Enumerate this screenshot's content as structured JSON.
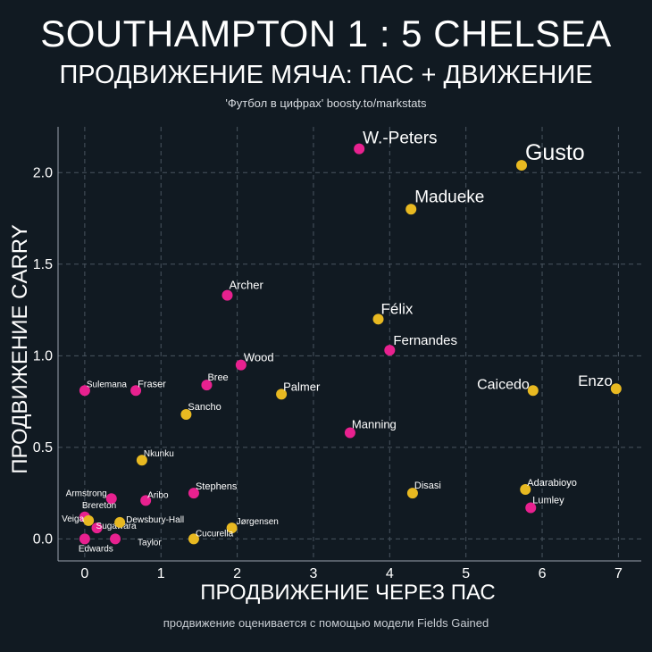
{
  "header": {
    "title": "SOUTHAMPTON 1 : 5 CHELSEA",
    "subtitle": "ПРОДВИЖЕНИЕ МЯЧА: ПАС + ДВИЖЕНИЕ",
    "source": "'Футбол в цифрах' boosty.to/markstats"
  },
  "footer": {
    "note": "продвижение оценивается с помощью модели Fields Gained"
  },
  "colors": {
    "background": "#111a22",
    "southampton": "#e8218f",
    "chelsea": "#e8b921",
    "grid": "#4a5560"
  },
  "chart_data": {
    "type": "scatter",
    "xlabel": "ПРОДВИЖЕНИЕ ЧЕРЕЗ ПАС",
    "ylabel": "ПРОДВИЖЕНИЕ CARRY",
    "xlim": [
      -0.35,
      7.3
    ],
    "ylim": [
      -0.12,
      2.25
    ],
    "xticks": [
      "0",
      "1",
      "2",
      "3",
      "4",
      "5",
      "6",
      "7"
    ],
    "yticks": [
      "0.0",
      "0.5",
      "1.0",
      "1.5",
      "2.0"
    ],
    "grid": true,
    "series": [
      {
        "name": "Southampton",
        "color": "#e8218f",
        "points": [
          {
            "label": "W.-Peters",
            "x": 3.6,
            "y": 2.13
          },
          {
            "label": "Archer",
            "x": 1.87,
            "y": 1.33
          },
          {
            "label": "Fernandes",
            "x": 4.0,
            "y": 1.03
          },
          {
            "label": "Wood",
            "x": 2.05,
            "y": 0.95
          },
          {
            "label": "Bree",
            "x": 1.6,
            "y": 0.84
          },
          {
            "label": "Sulemana",
            "x": 0.0,
            "y": 0.81
          },
          {
            "label": "Fraser",
            "x": 0.67,
            "y": 0.81
          },
          {
            "label": "Manning",
            "x": 3.48,
            "y": 0.58
          },
          {
            "label": "Stephens",
            "x": 1.43,
            "y": 0.25
          },
          {
            "label": "Aribo",
            "x": 0.8,
            "y": 0.21
          },
          {
            "label": "Armstrong",
            "x": 0.35,
            "y": 0.22
          },
          {
            "label": "Lumley",
            "x": 5.85,
            "y": 0.17
          },
          {
            "label": "Brereton",
            "x": 0.0,
            "y": 0.12
          },
          {
            "label": "Sugawara",
            "x": 0.16,
            "y": 0.06
          },
          {
            "label": "Edwards",
            "x": 0.0,
            "y": 0.0
          },
          {
            "label": "Taylor",
            "x": 0.4,
            "y": 0.0
          }
        ]
      },
      {
        "name": "Chelsea",
        "color": "#e8b921",
        "points": [
          {
            "label": "Gusto",
            "x": 5.73,
            "y": 2.04
          },
          {
            "label": "Madueke",
            "x": 4.28,
            "y": 1.8
          },
          {
            "label": "Félix",
            "x": 3.85,
            "y": 1.2
          },
          {
            "label": "Enzo",
            "x": 6.97,
            "y": 0.82
          },
          {
            "label": "Caicedo",
            "x": 5.88,
            "y": 0.81
          },
          {
            "label": "Palmer",
            "x": 2.58,
            "y": 0.79
          },
          {
            "label": "Sancho",
            "x": 1.33,
            "y": 0.68
          },
          {
            "label": "Nkunku",
            "x": 0.75,
            "y": 0.43
          },
          {
            "label": "Adarabioyo",
            "x": 5.78,
            "y": 0.27
          },
          {
            "label": "Disasi",
            "x": 4.3,
            "y": 0.25
          },
          {
            "label": "Veiga",
            "x": 0.05,
            "y": 0.1
          },
          {
            "label": "Dewsbury-Hall",
            "x": 0.46,
            "y": 0.09
          },
          {
            "label": "Jørgensen",
            "x": 1.93,
            "y": 0.06
          },
          {
            "label": "Cucurella",
            "x": 1.43,
            "y": 0.0
          }
        ]
      }
    ]
  }
}
